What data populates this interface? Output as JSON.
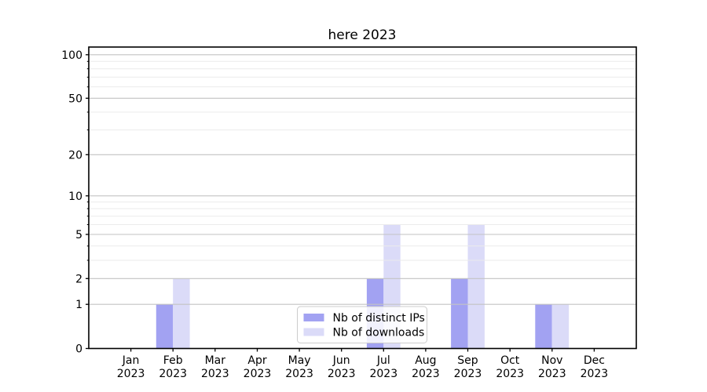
{
  "figure": {
    "background": "#ffffff"
  },
  "chart_data": {
    "type": "bar",
    "title": "here 2023",
    "categories": [
      "Jan",
      "Feb",
      "Mar",
      "Apr",
      "May",
      "Jun",
      "Jul",
      "Aug",
      "Sep",
      "Oct",
      "Nov",
      "Dec"
    ],
    "x_tick_second_line": "2023",
    "series": [
      {
        "name": "Nb of distinct IPs",
        "color": "#a2a2f2",
        "values": [
          0,
          1,
          0,
          0,
          0,
          0,
          2,
          0,
          2,
          0,
          1,
          0
        ]
      },
      {
        "name": "Nb of downloads",
        "color": "#dbdbf8",
        "values": [
          0,
          2,
          0,
          0,
          0,
          0,
          6,
          0,
          6,
          0,
          1,
          0
        ]
      }
    ],
    "yscale": "log1p",
    "ylim": [
      0,
      113
    ],
    "y_major_ticks": [
      0,
      1,
      2,
      5,
      10,
      20,
      50,
      100
    ],
    "y_minor_ticks": [
      3,
      4,
      6,
      7,
      8,
      9,
      30,
      40,
      60,
      70,
      80,
      90
    ],
    "grid": "both",
    "legend_position": "lower center",
    "colors": {
      "spine": "#000000",
      "major_grid": "#c3c3c3",
      "minor_grid": "#ebebeb",
      "legend_border": "#cccccc",
      "legend_background": "rgba(255,255,255,0.85)"
    }
  }
}
